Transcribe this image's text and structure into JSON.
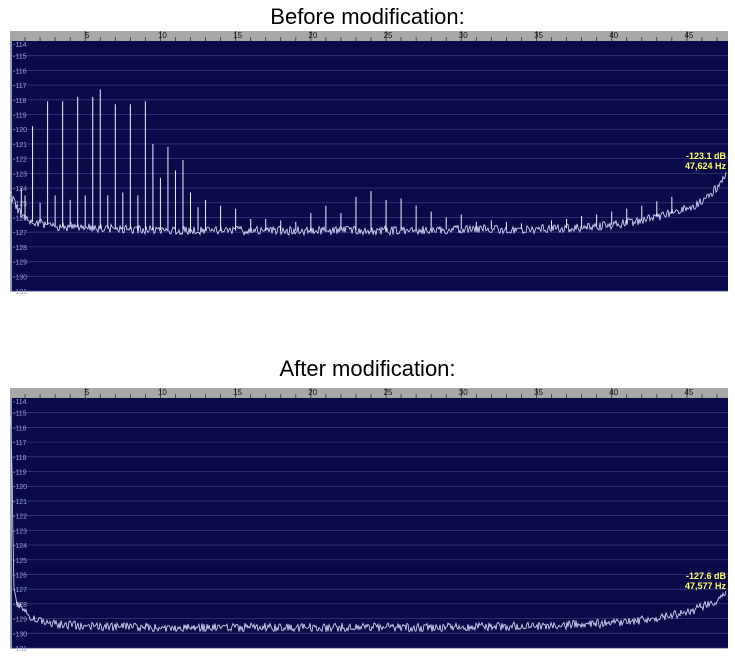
{
  "chart_data": [
    {
      "type": "line",
      "title": "Before modification:",
      "x_ticks": [
        5,
        10,
        15,
        20,
        25,
        30,
        35,
        40,
        45
      ],
      "y_ticks": [
        -114,
        -115,
        -116,
        -117,
        -118,
        -119,
        -120,
        -121,
        -122,
        -123,
        -124,
        -125,
        -126,
        -127,
        -128,
        -129,
        -130,
        -131
      ],
      "xlim": [
        0,
        47.6
      ],
      "ylim": [
        -131,
        -114
      ],
      "grid": true,
      "readout": {
        "level": "-123.1 dB",
        "frequency": "47,624 Hz"
      },
      "noise_floor": {
        "x": [
          0,
          0.5,
          1,
          2,
          3,
          5,
          8,
          12,
          18,
          25,
          30,
          35,
          38,
          40,
          42,
          44,
          45.5,
          46.5,
          47.6
        ],
        "y": [
          -124.5,
          -125.4,
          -126.2,
          -126.4,
          -126.6,
          -126.7,
          -126.8,
          -126.9,
          -126.9,
          -126.9,
          -126.8,
          -126.8,
          -126.7,
          -126.5,
          -126.2,
          -125.7,
          -125.2,
          -124.6,
          -123.1
        ]
      },
      "spurs": {
        "x": [
          0.75,
          1.0,
          1.5,
          2.0,
          2.5,
          3.0,
          3.5,
          4.0,
          4.5,
          5.0,
          5.5,
          6.0,
          6.5,
          7.0,
          7.5,
          8.0,
          8.5,
          9.0,
          9.5,
          10.0,
          10.5,
          11.0,
          11.5,
          12.0,
          12.5,
          13.0,
          14.0,
          15.0,
          16.0,
          17.0,
          18.0,
          19.0,
          20.0,
          21.0,
          22.0,
          23.0,
          24.0,
          25.0,
          26.0,
          27.0,
          28.0,
          29.0,
          30.0,
          31.0,
          32.0,
          33.0,
          34.0,
          36.0,
          37.0,
          38.0,
          39.0,
          40.0,
          41.0,
          42.0,
          43.0,
          44.0
        ],
        "y": [
          -124.0,
          -124.5,
          -119.8,
          -125.0,
          -118.1,
          -124.5,
          -118.1,
          -124.8,
          -117.8,
          -124.5,
          -117.8,
          -117.3,
          -124.5,
          -118.3,
          -124.3,
          -118.3,
          -124.5,
          -118.1,
          -121.0,
          -123.3,
          -121.2,
          -122.8,
          -122.1,
          -124.3,
          -125.3,
          -124.8,
          -125.2,
          -125.4,
          -126.1,
          -126.1,
          -126.2,
          -126.3,
          -125.7,
          -125.2,
          -125.7,
          -124.6,
          -124.2,
          -124.8,
          -124.7,
          -125.2,
          -125.6,
          -126.0,
          -125.8,
          -126.3,
          -126.2,
          -126.3,
          -126.4,
          -126.2,
          -126.1,
          -125.9,
          -125.8,
          -125.6,
          -125.4,
          -125.2,
          -124.9,
          -124.6
        ]
      }
    },
    {
      "type": "line",
      "title": "After modification:",
      "x_ticks": [
        5,
        10,
        15,
        20,
        25,
        30,
        35,
        40,
        45
      ],
      "y_ticks": [
        -114,
        -115,
        -116,
        -117,
        -118,
        -119,
        -120,
        -121,
        -122,
        -123,
        -124,
        -125,
        -126,
        -127,
        -128,
        -129,
        -130,
        -131
      ],
      "xlim": [
        0,
        47.6
      ],
      "ylim": [
        -131,
        -114
      ],
      "grid": true,
      "readout": {
        "level": "-127.6 dB",
        "frequency": "47,577 Hz"
      },
      "noise_floor": {
        "x": [
          0,
          0.1,
          0.25,
          0.5,
          1,
          1.5,
          2,
          3,
          5,
          10,
          15,
          20,
          25,
          30,
          35,
          38,
          40,
          42,
          44,
          45.5,
          46.5,
          47.6
        ],
        "y": [
          -115.5,
          -116.8,
          -126.8,
          -128.0,
          -128.6,
          -129.0,
          -129.2,
          -129.4,
          -129.5,
          -129.6,
          -129.6,
          -129.6,
          -129.6,
          -129.6,
          -129.5,
          -129.4,
          -129.3,
          -129.1,
          -128.8,
          -128.4,
          -128.0,
          -127.4
        ]
      },
      "spurs": {
        "x": [],
        "y": []
      }
    }
  ]
}
